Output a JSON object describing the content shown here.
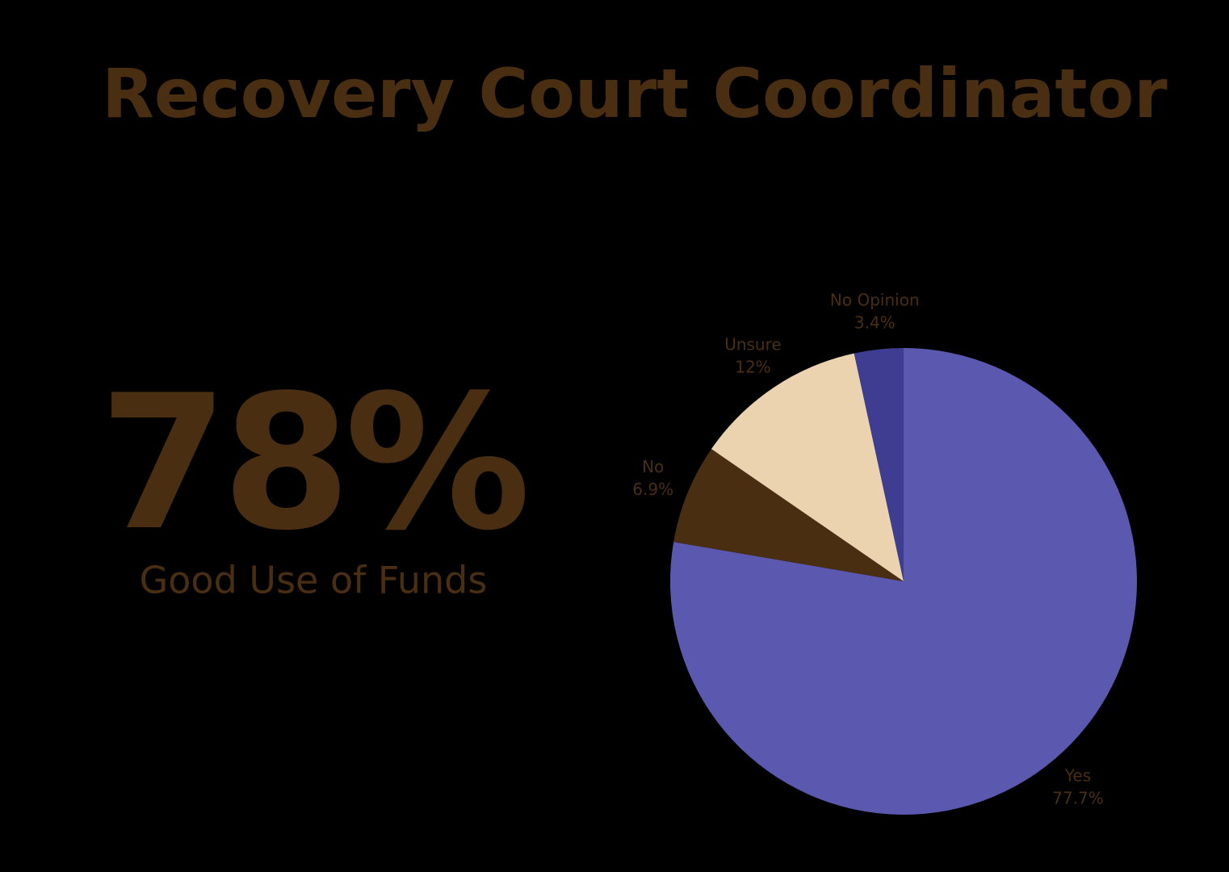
{
  "chart_data": {
    "type": "pie",
    "title": "Recovery Court Coordinator",
    "annotations": [
      "78%",
      "Good Use of Funds"
    ],
    "categories": [
      "Yes",
      "No",
      "Unsure",
      "No Opinion"
    ],
    "values": [
      77.7,
      6.9,
      12,
      3.4
    ],
    "value_labels": [
      "77.7%",
      "6.9%",
      "12%",
      "3.4%"
    ],
    "colors": [
      "#5b58b0",
      "#4a2e12",
      "#ebd3b0",
      "#3f3d91"
    ]
  }
}
